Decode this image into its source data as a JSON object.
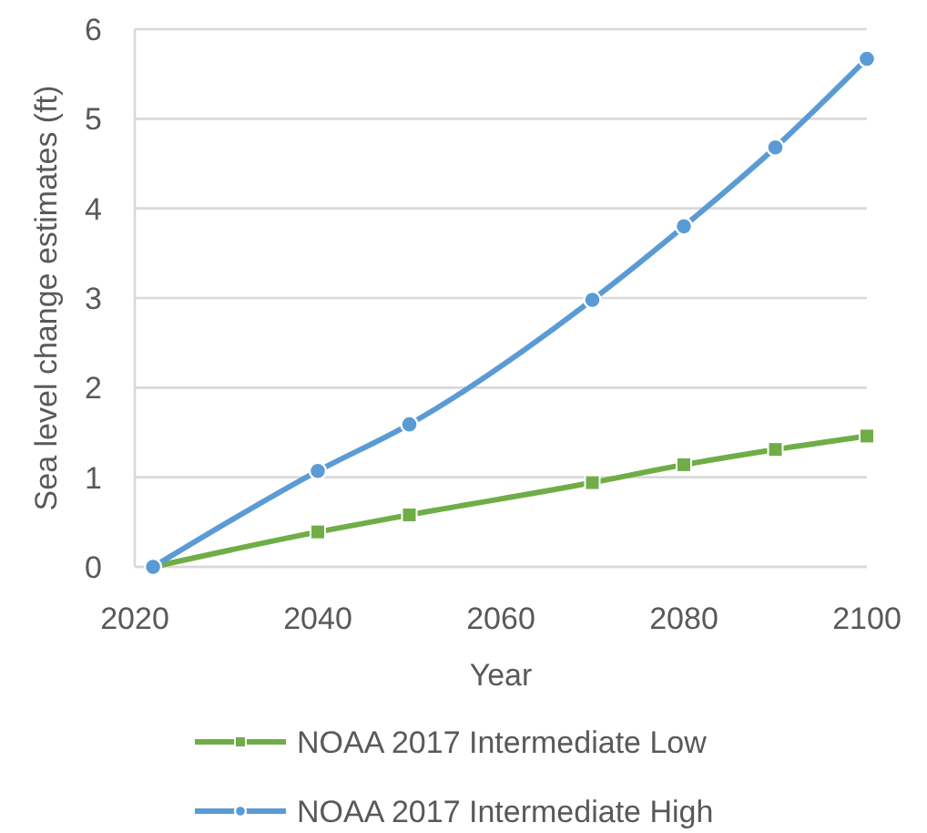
{
  "chart_data": {
    "type": "line",
    "xlabel": "Year",
    "ylabel": "Sea level change estimates (ft)",
    "xlim": [
      2020,
      2100
    ],
    "xticks": [
      2020,
      2040,
      2060,
      2080,
      2100
    ],
    "ylim": [
      0,
      6
    ],
    "yticks": [
      0,
      1,
      2,
      3,
      4,
      5,
      6
    ],
    "grid": "y",
    "legend": "bottom",
    "line_style": "solid",
    "x": [
      2022,
      2040,
      2050,
      2070,
      2080,
      2090,
      2100
    ],
    "series": [
      {
        "name": "NOAA 2017 Intermediate Low",
        "color": "#70ad47",
        "marker": "square",
        "values": [
          0,
          0.39,
          0.58,
          0.94,
          1.14,
          1.31,
          1.46
        ]
      },
      {
        "name": "NOAA 2017 Intermediate High",
        "color": "#5b9bd5",
        "marker": "circle",
        "values": [
          0,
          1.07,
          1.59,
          2.98,
          3.8,
          4.68,
          5.67
        ]
      }
    ]
  }
}
